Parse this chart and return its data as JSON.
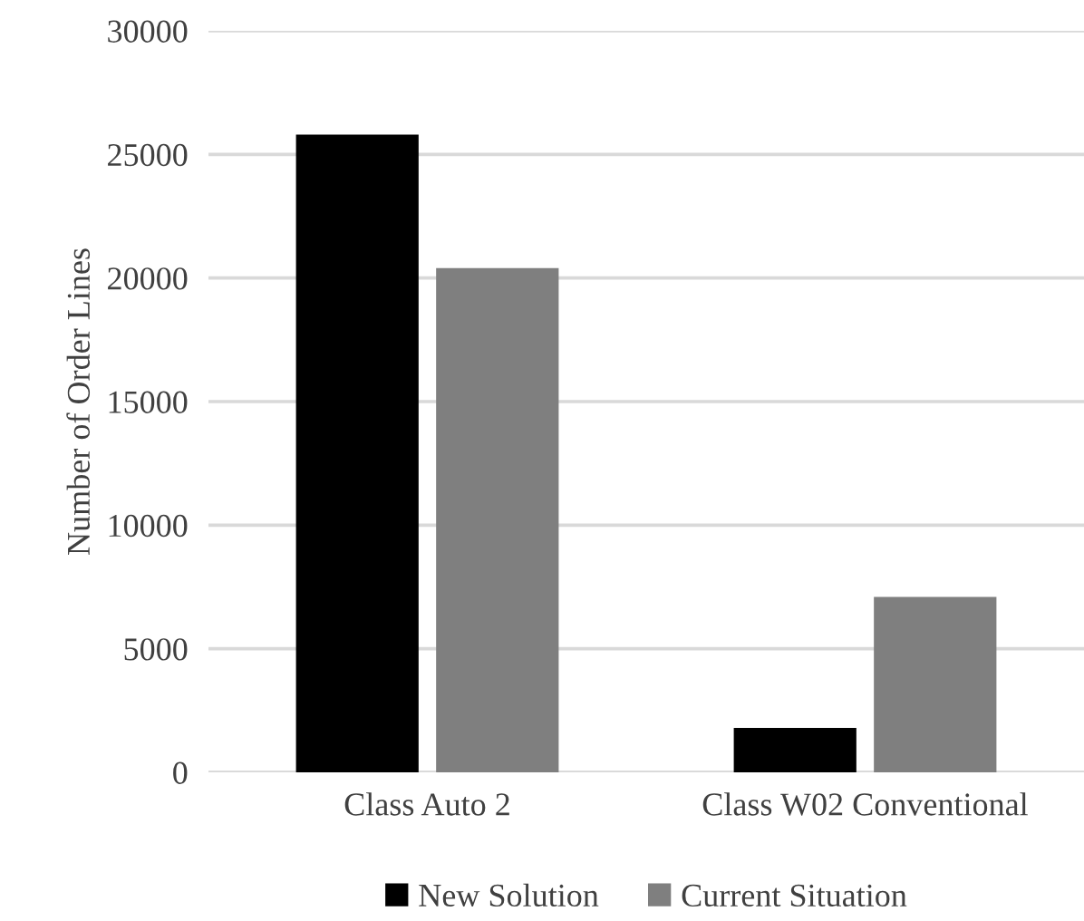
{
  "chart_data": {
    "type": "bar",
    "ylabel": "Number of Order Lines",
    "categories": [
      "Class Auto 2",
      "Class W02 Conventional"
    ],
    "series": [
      {
        "name": "New Solution",
        "color": "#000000",
        "values": [
          25800,
          1800
        ]
      },
      {
        "name": "Current Situation",
        "color": "#7f7f7f",
        "values": [
          20400,
          7100
        ]
      }
    ],
    "ylim": [
      0,
      30000
    ],
    "yticks": [
      0,
      5000,
      10000,
      15000,
      20000,
      25000,
      30000
    ],
    "grid": "y",
    "legend": "bottom"
  }
}
